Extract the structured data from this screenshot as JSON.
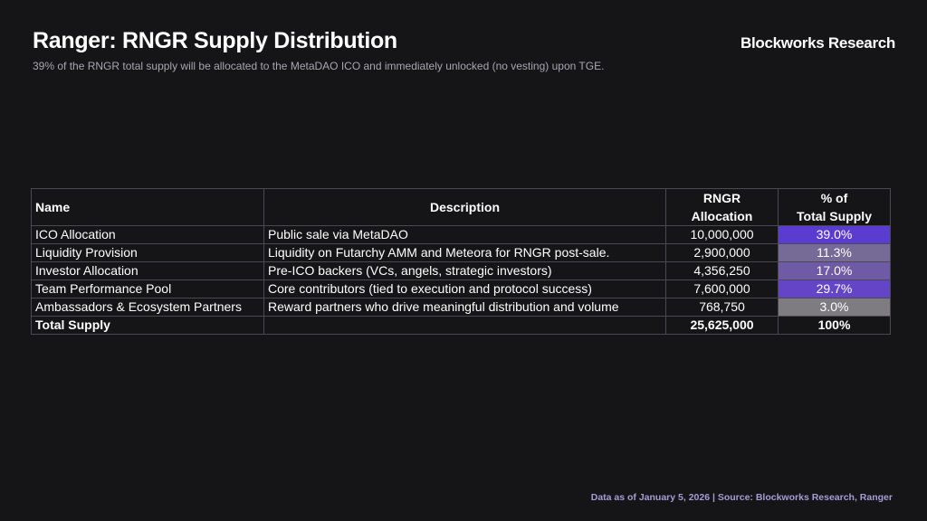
{
  "header": {
    "title": "Ranger: RNGR Supply Distribution",
    "subtitle": "39% of the RNGR total supply will be allocated to the MetaDAO ICO and immediately unlocked (no vesting) upon TGE.",
    "brand": "Blockworks Research"
  },
  "footer": {
    "source": "Data as of January 5, 2026 | Source: Blockworks Research, Ranger"
  },
  "chart_data": {
    "type": "table",
    "columns": [
      {
        "label": "Name",
        "line1": "Name",
        "line2": ""
      },
      {
        "label": "Description",
        "line1": "Description",
        "line2": ""
      },
      {
        "label": "RNGR Allocation",
        "line1": "RNGR",
        "line2": "Allocation"
      },
      {
        "label": "% of Total Supply",
        "line1": "% of",
        "line2": "Total Supply"
      }
    ],
    "rows": [
      {
        "name": "ICO Allocation",
        "description": "Public sale via MetaDAO",
        "allocation": "10,000,000",
        "pct": "39.0%",
        "pct_value": 39.0,
        "color": "#5b3cd1"
      },
      {
        "name": "Liquidity Provision",
        "description": "Liquidity on Futarchy AMM and Meteora for RNGR post-sale.",
        "allocation": "2,900,000",
        "pct": "11.3%",
        "pct_value": 11.3,
        "color": "#766a96"
      },
      {
        "name": "Investor Allocation",
        "description": "Pre-ICO backers (VCs, angels, strategic investors)",
        "allocation": "4,356,250",
        "pct": "17.0%",
        "pct_value": 17.0,
        "color": "#6f5aa6"
      },
      {
        "name": "Team Performance Pool",
        "description": "Core contributors (tied to execution and protocol success)",
        "allocation": "7,600,000",
        "pct": "29.7%",
        "pct_value": 29.7,
        "color": "#6445c8"
      },
      {
        "name": "Ambassadors & Ecosystem Partners",
        "description": "Reward partners who drive meaningful distribution and volume",
        "allocation": "768,750",
        "pct": "3.0%",
        "pct_value": 3.0,
        "color": "#7e7b81"
      }
    ],
    "total": {
      "name": "Total Supply",
      "description": "",
      "allocation": "25,625,000",
      "pct": "100%"
    }
  }
}
